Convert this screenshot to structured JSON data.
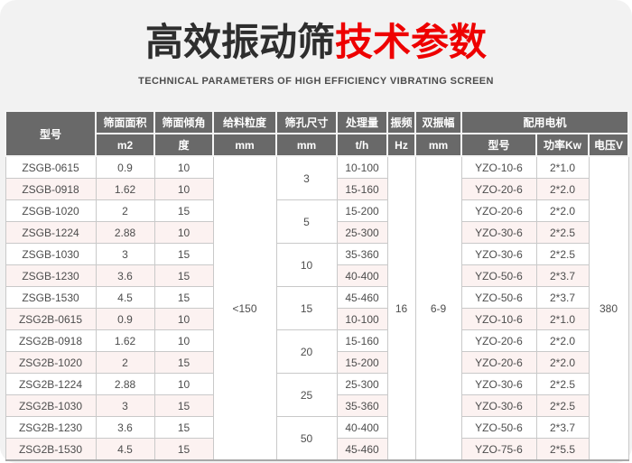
{
  "page": {
    "title_black": "高效振动筛",
    "title_red": "技术参数",
    "subtitle": "TECHNICAL PARAMETERS OF HIGH EFFICIENCY VIBRATING SCREEN"
  },
  "colors": {
    "panel_bg": "#f2f2f2",
    "accent_red": "#ee0000",
    "header_bg": "#696969",
    "stripe_pink": "#fcf2f1",
    "border": "#c9c9c9"
  },
  "table": {
    "header": {
      "model_col": "型号",
      "groups": [
        {
          "label": "筛面面积",
          "unit": "m2"
        },
        {
          "label": "筛面倾角",
          "unit": "度"
        },
        {
          "label": "给料粒度",
          "unit": "mm"
        },
        {
          "label": "筛孔尺寸",
          "unit": "mm"
        },
        {
          "label": "处理量",
          "unit": "t/h"
        },
        {
          "label": "振频",
          "unit": "Hz"
        },
        {
          "label": "双振幅",
          "unit": "mm"
        }
      ],
      "motor_group": {
        "label": "配用电机",
        "cols": [
          "型号",
          "功率Kw",
          "电压V"
        ]
      }
    },
    "shared": {
      "feed_size": "<150",
      "frequency": "16",
      "amplitude": "6-9",
      "voltage": "380"
    },
    "mesh_spans": [
      "3",
      "5",
      "10",
      "15",
      "20",
      "25",
      "50"
    ],
    "rows": [
      {
        "model": "ZSGB-0615",
        "area": "0.9",
        "angle": "10",
        "capacity": "10-100",
        "motor_model": "YZO-10-6",
        "power": "2*1.0"
      },
      {
        "model": "ZSGB-0918",
        "area": "1.62",
        "angle": "10",
        "capacity": "15-160",
        "motor_model": "YZO-20-6",
        "power": "2*2.0"
      },
      {
        "model": "ZSGB-1020",
        "area": "2",
        "angle": "15",
        "capacity": "15-200",
        "motor_model": "YZO-20-6",
        "power": "2*2.0"
      },
      {
        "model": "ZSGB-1224",
        "area": "2.88",
        "angle": "10",
        "capacity": "25-300",
        "motor_model": "YZO-30-6",
        "power": "2*2.5"
      },
      {
        "model": "ZSGB-1030",
        "area": "3",
        "angle": "15",
        "capacity": "35-360",
        "motor_model": "YZO-30-6",
        "power": "2*2.5"
      },
      {
        "model": "ZSGB-1230",
        "area": "3.6",
        "angle": "15",
        "capacity": "40-400",
        "motor_model": "YZO-50-6",
        "power": "2*3.7"
      },
      {
        "model": "ZSGB-1530",
        "area": "4.5",
        "angle": "15",
        "capacity": "45-460",
        "motor_model": "YZO-50-6",
        "power": "2*3.7"
      },
      {
        "model": "ZSG2B-0615",
        "area": "0.9",
        "angle": "10",
        "capacity": "10-100",
        "motor_model": "YZO-10-6",
        "power": "2*1.0"
      },
      {
        "model": "ZSG2B-0918",
        "area": "1.62",
        "angle": "10",
        "capacity": "15-160",
        "motor_model": "YZO-20-6",
        "power": "2*2.0"
      },
      {
        "model": "ZSG2B-1020",
        "area": "2",
        "angle": "15",
        "capacity": "15-200",
        "motor_model": "YZO-20-6",
        "power": "2*2.0"
      },
      {
        "model": "ZSG2B-1224",
        "area": "2.88",
        "angle": "10",
        "capacity": "25-300",
        "motor_model": "YZO-30-6",
        "power": "2*2.5"
      },
      {
        "model": "ZSG2B-1030",
        "area": "3",
        "angle": "15",
        "capacity": "35-360",
        "motor_model": "YZO-30-6",
        "power": "2*2.5"
      },
      {
        "model": "ZSG2B-1230",
        "area": "3.6",
        "angle": "15",
        "capacity": "40-400",
        "motor_model": "YZO-50-6",
        "power": "2*3.7"
      },
      {
        "model": "ZSG2B-1530",
        "area": "4.5",
        "angle": "15",
        "capacity": "45-460",
        "motor_model": "YZO-75-6",
        "power": "2*5.5"
      }
    ]
  }
}
